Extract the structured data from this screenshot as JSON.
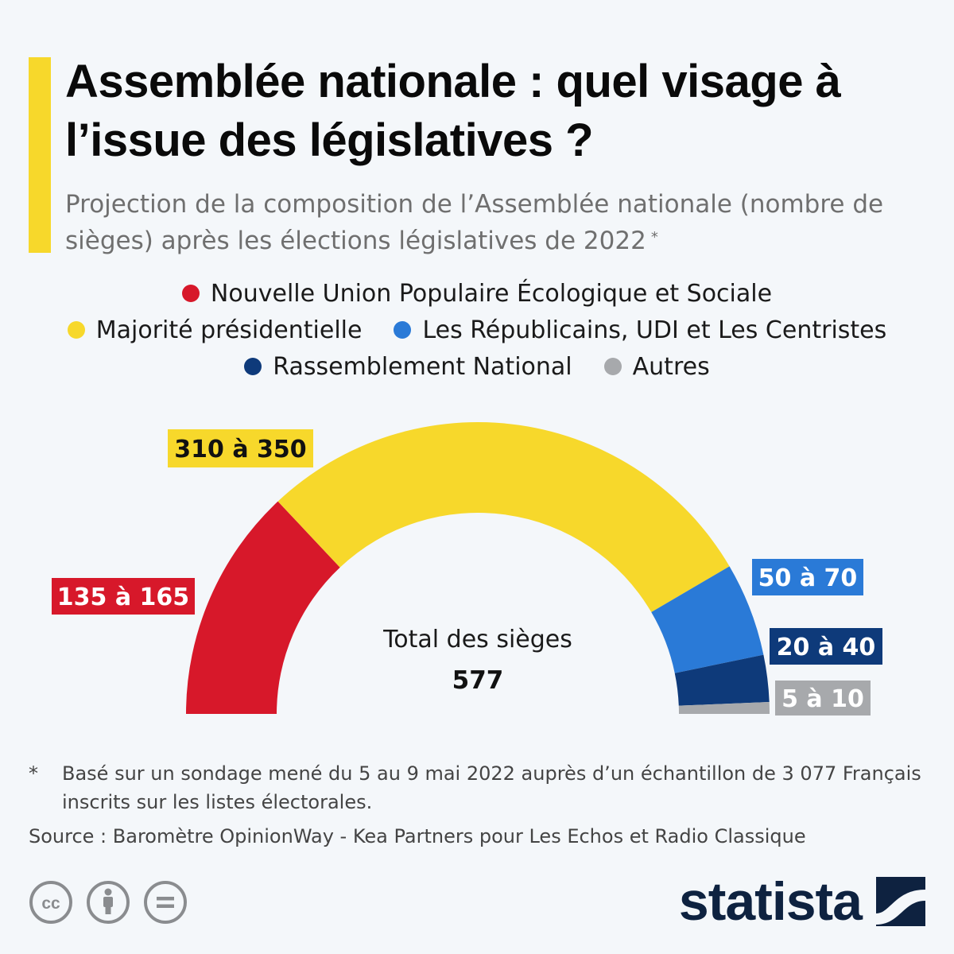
{
  "header": {
    "title": "Assemblée nationale : quel visage à l’issue des législatives ?",
    "subtitle": "Projection de la composition de l’Assemblée nationale (nombre de sièges) après les élections législatives de 2022",
    "subtitle_marker": "*"
  },
  "legend": {
    "rows": [
      [
        {
          "label": "Nouvelle Union Populaire Écologique et Sociale",
          "color": "#d7182a"
        }
      ],
      [
        {
          "label": "Majorité présidentielle",
          "color": "#f7d82b"
        },
        {
          "label": "Les Républicains, UDI et Les Centristes",
          "color": "#2a7ad7"
        }
      ],
      [
        {
          "label": "Rassemblement National",
          "color": "#0e3a7a"
        },
        {
          "label": "Autres",
          "color": "#a7a9ac"
        }
      ]
    ]
  },
  "chart_data": {
    "type": "pie",
    "variant": "half-donut",
    "title": "Projection de la composition de l’Assemblée nationale",
    "total_label": "Total des sièges",
    "total": 577,
    "series": [
      {
        "name": "Nouvelle Union Populaire Écologique et Sociale",
        "label": "135 à 165",
        "range": [
          135,
          165
        ],
        "value": 150,
        "color": "#d7182a",
        "label_text_color": "#ffffff"
      },
      {
        "name": "Majorité présidentielle",
        "label": "310 à 350",
        "range": [
          310,
          350
        ],
        "value": 330,
        "color": "#f7d82b",
        "label_text_color": "#111111"
      },
      {
        "name": "Les Républicains, UDI et Les Centristes",
        "label": "50 à 70",
        "range": [
          50,
          70
        ],
        "value": 60,
        "color": "#2a7ad7",
        "label_text_color": "#ffffff"
      },
      {
        "name": "Rassemblement National",
        "label": "20 à 40",
        "range": [
          20,
          40
        ],
        "value": 30,
        "color": "#0e3a7a",
        "label_text_color": "#ffffff"
      },
      {
        "name": "Autres",
        "label": "5 à 10",
        "range": [
          5,
          10
        ],
        "value": 7.5,
        "color": "#a7a9ac",
        "label_text_color": "#ffffff"
      }
    ]
  },
  "footer": {
    "footnote_marker": "*",
    "footnote": "Basé sur un sondage mené du 5 au 9 mai 2022 auprès d’un échantillon de 3 077 Français inscrits sur les listes électorales.",
    "source": "Source : Baromètre OpinionWay - Kea Partners pour Les Echos et Radio Classique",
    "brand": "statista",
    "license_icons": [
      "cc-icon",
      "attribution-icon",
      "no-derivatives-icon"
    ],
    "license_icon_labels": [
      "cc",
      "by",
      "nd"
    ]
  }
}
